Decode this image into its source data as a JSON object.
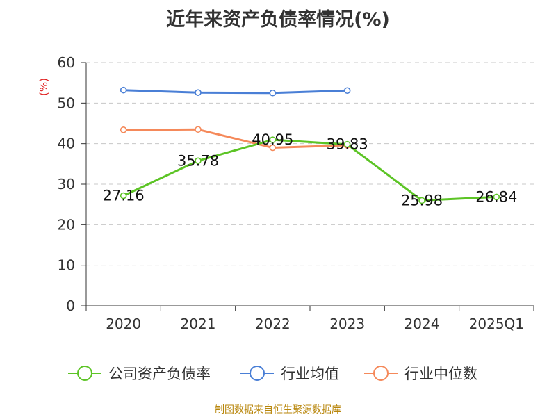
{
  "chart_data": {
    "type": "line",
    "title": "近年来资产负债率情况(%)",
    "ylabel": "(%)",
    "xlabel": "",
    "categories": [
      "2020",
      "2021",
      "2022",
      "2023",
      "2024",
      "2025Q1"
    ],
    "ylim": [
      0,
      60
    ],
    "yticks": [
      0,
      10,
      20,
      30,
      40,
      50,
      60
    ],
    "grid": true,
    "legend_position": "bottom",
    "series": [
      {
        "name": "公司资产负债率",
        "color": "#5cc425",
        "values": [
          27.16,
          35.78,
          40.95,
          39.83,
          25.98,
          26.84
        ],
        "labels": [
          "27.16",
          "35.78",
          "40.95",
          "39.83",
          "25.98",
          "26.84"
        ]
      },
      {
        "name": "行业均值",
        "color": "#4a7fd6",
        "values": [
          53.2,
          52.6,
          52.5,
          53.1,
          null,
          null
        ]
      },
      {
        "name": "行业中位数",
        "color": "#f5895a",
        "values": [
          43.4,
          43.5,
          39.0,
          39.6,
          null,
          null
        ]
      }
    ],
    "source": "制图数据来自恒生聚源数据库"
  }
}
